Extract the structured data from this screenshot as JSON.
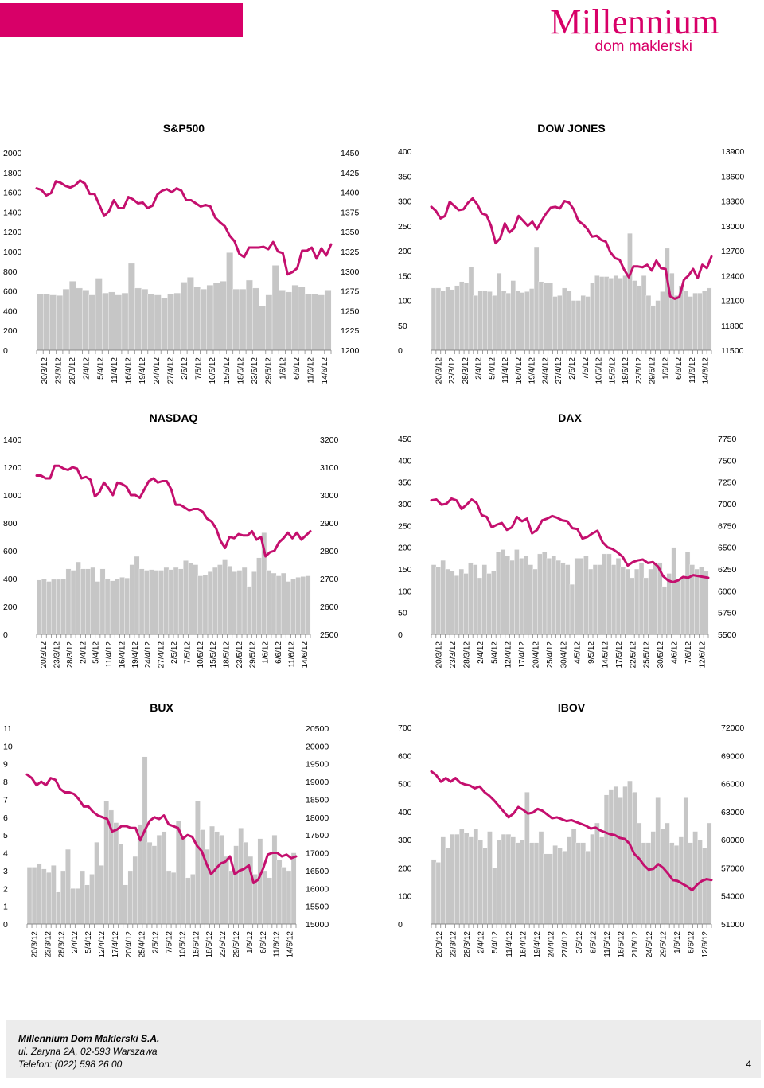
{
  "brand": {
    "name": "Millennium",
    "subtitle": "dom maklerski",
    "accent_color": "#d80068",
    "line_color": "#c40f6e",
    "bar_color": "#c6c6c6"
  },
  "footer": {
    "company": "Millennium Dom Maklerski S.A.",
    "address": "ul. Żaryna 2A, 02-593 Warszawa",
    "phone": "Telefon: (022) 598 26 00",
    "page": "4"
  },
  "chart_data": [
    {
      "type": "bar+line",
      "title": "S&P500",
      "categories": [
        "20/3/12",
        "23/3/12",
        "28/3/12",
        "2/4/12",
        "5/4/12",
        "11/4/12",
        "16/4/12",
        "19/4/12",
        "24/4/12",
        "27/4/12",
        "2/5/12",
        "7/5/12",
        "10/5/12",
        "15/5/12",
        "18/5/12",
        "23/5/12",
        "29/5/12",
        "1/6/12",
        "6/6/12",
        "11/6/12",
        "14/6/12"
      ],
      "left_axis": {
        "ticks": [
          0,
          200,
          400,
          600,
          800,
          1000,
          1200,
          1400,
          1600,
          1800,
          2000
        ],
        "range": [
          0,
          2000
        ]
      },
      "right_axis": {
        "ticks": [
          1200,
          1225,
          1250,
          1275,
          1300,
          1325,
          1350,
          1375,
          1400,
          1425,
          1450
        ],
        "range": [
          1200,
          1450
        ]
      },
      "bars": [
        570,
        570,
        560,
        555,
        620,
        700,
        630,
        610,
        560,
        730,
        580,
        590,
        560,
        580,
        880,
        630,
        620,
        570,
        560,
        530,
        570,
        580,
        690,
        740,
        640,
        620,
        660,
        680,
        700,
        990,
        620,
        620,
        710,
        630,
        450,
        560,
        860,
        610,
        590,
        660,
        640,
        570,
        570,
        560,
        610
      ],
      "line": [
        1405,
        1403,
        1396,
        1399,
        1414,
        1412,
        1408,
        1406,
        1409,
        1415,
        1411,
        1398,
        1398,
        1384,
        1370,
        1376,
        1390,
        1380,
        1380,
        1394,
        1391,
        1386,
        1387,
        1380,
        1383,
        1397,
        1402,
        1404,
        1400,
        1405,
        1402,
        1390,
        1390,
        1386,
        1382,
        1384,
        1382,
        1368,
        1362,
        1357,
        1345,
        1338,
        1322,
        1318,
        1330,
        1330,
        1330,
        1331,
        1328,
        1337,
        1325,
        1323,
        1296,
        1299,
        1304,
        1326,
        1326,
        1330,
        1316,
        1329,
        1320,
        1334
      ]
    },
    {
      "type": "bar+line",
      "title": "DOW JONES",
      "categories": [
        "20/3/12",
        "23/3/12",
        "28/3/12",
        "2/4/12",
        "5/4/12",
        "11/4/12",
        "16/4/12",
        "19/4/12",
        "24/4/12",
        "27/4/12",
        "2/5/12",
        "7/5/12",
        "10/5/12",
        "15/5/12",
        "18/5/12",
        "23/5/12",
        "29/5/12",
        "1/6/12",
        "6/6/12",
        "11/6/12",
        "14/6/12"
      ],
      "left_axis": {
        "ticks": [
          0,
          50,
          100,
          150,
          200,
          250,
          300,
          350,
          400
        ],
        "range": [
          0,
          400
        ]
      },
      "right_axis": {
        "ticks": [
          11500,
          11800,
          12100,
          12400,
          12700,
          13000,
          13300,
          13600,
          13900
        ],
        "range": [
          11500,
          13900
        ]
      },
      "bars": [
        125,
        125,
        120,
        128,
        122,
        130,
        138,
        135,
        168,
        110,
        120,
        120,
        118,
        110,
        155,
        120,
        115,
        140,
        120,
        116,
        118,
        124,
        208,
        138,
        135,
        136,
        108,
        110,
        125,
        120,
        100,
        100,
        110,
        108,
        135,
        150,
        148,
        148,
        145,
        150,
        145,
        150,
        235,
        140,
        130,
        150,
        110,
        90,
        100,
        118,
        205,
        155,
        110,
        130,
        120,
        108,
        115,
        115,
        120,
        125
      ],
      "line": [
        13230,
        13180,
        13090,
        13120,
        13290,
        13240,
        13190,
        13200,
        13280,
        13330,
        13260,
        13150,
        13130,
        13000,
        12790,
        12850,
        13030,
        12920,
        12970,
        13120,
        13060,
        13000,
        13050,
        12960,
        13060,
        13150,
        13220,
        13230,
        13210,
        13300,
        13280,
        13200,
        13060,
        13020,
        12960,
        12870,
        12880,
        12830,
        12810,
        12680,
        12610,
        12590,
        12470,
        12380,
        12510,
        12510,
        12500,
        12530,
        12460,
        12580,
        12490,
        12480,
        12150,
        12120,
        12140,
        12350,
        12400,
        12480,
        12370,
        12530,
        12490,
        12630
      ]
    },
    {
      "type": "bar+line",
      "title": "NASDAQ",
      "categories": [
        "20/3/12",
        "23/3/12",
        "28/3/12",
        "2/4/12",
        "5/4/12",
        "11/4/12",
        "16/4/12",
        "19/4/12",
        "24/4/12",
        "27/4/12",
        "2/5/12",
        "7/5/12",
        "10/5/12",
        "15/5/12",
        "18/5/12",
        "23/5/12",
        "29/5/12",
        "1/6/12",
        "6/6/12",
        "11/6/12",
        "14/6/12"
      ],
      "left_axis": {
        "ticks": [
          0,
          200,
          400,
          600,
          800,
          1000,
          1200,
          1400
        ],
        "range": [
          0,
          1400
        ]
      },
      "right_axis": {
        "ticks": [
          2500,
          2600,
          2700,
          2800,
          2900,
          3000,
          3100,
          3200
        ],
        "range": [
          2500,
          3200
        ]
      },
      "bars": [
        390,
        400,
        380,
        395,
        395,
        400,
        470,
        460,
        520,
        470,
        470,
        480,
        380,
        470,
        400,
        385,
        400,
        410,
        405,
        500,
        560,
        470,
        460,
        465,
        460,
        460,
        480,
        465,
        480,
        470,
        530,
        510,
        500,
        420,
        425,
        450,
        480,
        500,
        540,
        490,
        450,
        460,
        480,
        345,
        450,
        550,
        730,
        460,
        440,
        420,
        440,
        380,
        400,
        410,
        415,
        420
      ],
      "line": [
        3070,
        3070,
        3060,
        3060,
        3105,
        3105,
        3095,
        3090,
        3100,
        3095,
        3060,
        3065,
        3055,
        2995,
        3010,
        3045,
        3025,
        3000,
        3045,
        3040,
        3030,
        3000,
        3000,
        2990,
        3020,
        3050,
        3060,
        3045,
        3050,
        3050,
        3020,
        2965,
        2965,
        2955,
        2945,
        2950,
        2950,
        2940,
        2915,
        2905,
        2880,
        2835,
        2810,
        2850,
        2845,
        2860,
        2855,
        2855,
        2870,
        2840,
        2850,
        2780,
        2795,
        2800,
        2830,
        2845,
        2865,
        2845,
        2865,
        2840,
        2855,
        2870
      ]
    },
    {
      "type": "bar+line",
      "title": "DAX",
      "categories": [
        "20/3/12",
        "23/3/12",
        "28/3/12",
        "2/4/12",
        "5/4/12",
        "12/4/12",
        "17/4/12",
        "20/4/12",
        "25/4/12",
        "30/4/12",
        "4/5/12",
        "9/5/12",
        "14/5/12",
        "17/5/12",
        "22/5/12",
        "25/5/12",
        "30/5/12",
        "4/6/12",
        "7/6/12",
        "12/6/12"
      ],
      "left_axis": {
        "ticks": [
          0,
          50,
          100,
          150,
          200,
          250,
          300,
          350,
          400,
          450
        ],
        "range": [
          0,
          450
        ]
      },
      "right_axis": {
        "ticks": [
          5500,
          5750,
          6000,
          6250,
          6500,
          6750,
          7000,
          7250,
          7500,
          7750
        ],
        "range": [
          5500,
          7750
        ]
      },
      "bars": [
        160,
        155,
        170,
        150,
        145,
        135,
        150,
        140,
        165,
        160,
        130,
        160,
        140,
        145,
        190,
        195,
        180,
        170,
        195,
        175,
        180,
        160,
        150,
        185,
        190,
        175,
        180,
        170,
        165,
        160,
        115,
        175,
        175,
        180,
        150,
        160,
        160,
        185,
        185,
        160,
        175,
        155,
        150,
        130,
        150,
        165,
        130,
        150,
        165,
        165,
        110,
        140,
        200,
        125,
        130,
        190,
        160,
        150,
        155,
        145
      ],
      "line": [
        7040,
        7050,
        6990,
        7000,
        7060,
        7040,
        6940,
        6990,
        7050,
        7010,
        6870,
        6850,
        6730,
        6760,
        6780,
        6700,
        6730,
        6850,
        6800,
        6830,
        6660,
        6700,
        6810,
        6830,
        6860,
        6840,
        6810,
        6800,
        6720,
        6710,
        6600,
        6620,
        6660,
        6690,
        6560,
        6500,
        6480,
        6440,
        6390,
        6290,
        6330,
        6350,
        6360,
        6320,
        6330,
        6280,
        6170,
        6120,
        6100,
        6120,
        6160,
        6150,
        6180,
        6170,
        6160,
        6150
      ]
    },
    {
      "type": "bar+line",
      "title": "BUX",
      "categories": [
        "20/3/12",
        "23/3/12",
        "28/3/12",
        "2/4/12",
        "5/4/12",
        "12/4/12",
        "17/4/12",
        "20/4/12",
        "25/4/12",
        "2/5/12",
        "7/5/12",
        "10/5/12",
        "15/5/12",
        "18/5/12",
        "23/5/12",
        "29/5/12",
        "1/6/12",
        "6/6/12",
        "11/6/12",
        "14/6/12"
      ],
      "left_axis": {
        "ticks": [
          0,
          1,
          2,
          3,
          4,
          5,
          6,
          7,
          8,
          9,
          10,
          11
        ],
        "range": [
          0,
          11
        ]
      },
      "right_axis": {
        "ticks": [
          15000,
          15500,
          16000,
          16500,
          17000,
          17500,
          18000,
          18500,
          19000,
          19500,
          20000,
          20500
        ],
        "range": [
          15000,
          20500
        ]
      },
      "bars": [
        3.2,
        3.2,
        3.4,
        3.1,
        2.9,
        3.3,
        1.8,
        3.0,
        4.2,
        2.0,
        2.0,
        3.0,
        2.2,
        2.8,
        4.6,
        3.3,
        6.9,
        6.4,
        5.7,
        4.5,
        2.2,
        3.0,
        3.8,
        5.6,
        9.4,
        4.6,
        4.4,
        5.0,
        5.2,
        3.0,
        2.9,
        5.8,
        4.9,
        2.6,
        2.8,
        6.9,
        5.3,
        4.2,
        5.5,
        5.2,
        5.0,
        3.8,
        3.0,
        4.4,
        5.4,
        4.6,
        3.8,
        2.8,
        4.8,
        3.0,
        2.6,
        5.0,
        3.6,
        3.2,
        3.0,
        4.0
      ],
      "line": [
        19200,
        19100,
        18900,
        19000,
        18900,
        19100,
        19050,
        18800,
        18700,
        18700,
        18650,
        18500,
        18300,
        18300,
        18150,
        18050,
        18000,
        17950,
        17600,
        17650,
        17750,
        17750,
        17700,
        17700,
        17350,
        17650,
        17900,
        18000,
        17950,
        18050,
        17800,
        17750,
        17700,
        17400,
        17500,
        17450,
        17200,
        17050,
        16700,
        16400,
        16550,
        16700,
        16750,
        16900,
        16400,
        16500,
        16550,
        16650,
        16150,
        16250,
        16550,
        16950,
        17000,
        17000,
        16900,
        16950,
        16850,
        16900
      ]
    },
    {
      "type": "bar+line",
      "title": "IBOV",
      "categories": [
        "20/3/12",
        "23/3/12",
        "28/3/12",
        "2/4/12",
        "5/4/12",
        "11/4/12",
        "16/4/12",
        "19/4/12",
        "24/4/12",
        "27/4/12",
        "3/5/12",
        "8/5/12",
        "11/5/12",
        "16/5/12",
        "21/5/12",
        "24/5/12",
        "29/5/12",
        "1/6/12",
        "6/6/12",
        "12/6/12"
      ],
      "left_axis": {
        "ticks": [
          0,
          100,
          200,
          300,
          400,
          500,
          600,
          700
        ],
        "range": [
          0,
          700
        ]
      },
      "right_axis": {
        "ticks": [
          51000,
          54000,
          57000,
          60000,
          63000,
          66000,
          69000,
          72000
        ],
        "range": [
          51000,
          72000
        ]
      },
      "bars": [
        230,
        220,
        310,
        270,
        320,
        320,
        340,
        325,
        310,
        340,
        300,
        270,
        330,
        200,
        300,
        320,
        320,
        310,
        290,
        300,
        470,
        290,
        290,
        330,
        250,
        250,
        280,
        270,
        260,
        310,
        340,
        290,
        290,
        260,
        320,
        360,
        310,
        460,
        480,
        490,
        450,
        490,
        510,
        470,
        360,
        290,
        290,
        330,
        450,
        340,
        360,
        290,
        280,
        310,
        450,
        290,
        330,
        300,
        270,
        360
      ],
      "line": [
        67300,
        66900,
        66200,
        66600,
        66200,
        66600,
        66100,
        65900,
        65800,
        65500,
        65700,
        65100,
        64700,
        64200,
        63600,
        63000,
        62400,
        62800,
        63500,
        63200,
        62800,
        62900,
        63300,
        63100,
        62700,
        62300,
        62400,
        62200,
        62000,
        62100,
        61900,
        61700,
        61500,
        61200,
        61300,
        61000,
        60800,
        60600,
        60500,
        60200,
        60100,
        59600,
        58500,
        58000,
        57300,
        56800,
        56900,
        57400,
        57000,
        56400,
        55700,
        55600,
        55300,
        55000,
        54600,
        55200,
        55600,
        55800,
        55700
      ]
    }
  ]
}
